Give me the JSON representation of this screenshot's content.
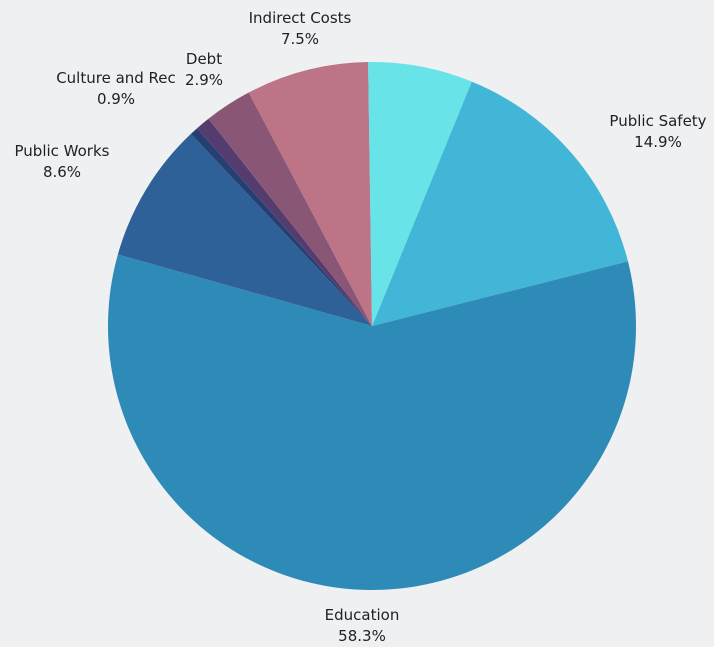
{
  "chart_data": {
    "type": "pie",
    "slices": [
      {
        "label": "Public Safety",
        "value": 14.9,
        "display": "14.9%",
        "color": "#42b6d6"
      },
      {
        "label": "Education",
        "value": 58.3,
        "display": "58.3%",
        "color": "#2e8bb8"
      },
      {
        "label": "Public Works",
        "value": 8.6,
        "display": "8.6%",
        "color": "#2f6199"
      },
      {
        "label": "",
        "value": 0.5,
        "display": "",
        "color": "#263f73"
      },
      {
        "label": "Culture and Rec",
        "value": 0.9,
        "display": "0.9%",
        "color": "#553c6e"
      },
      {
        "label": "Debt",
        "value": 2.9,
        "display": "2.9%",
        "color": "#8a5676"
      },
      {
        "label": "Indirect Costs",
        "value": 7.5,
        "display": "7.5%",
        "color": "#bc7486"
      },
      {
        "label": "",
        "value": 6.4,
        "display": "",
        "color": "#68e3e8"
      }
    ]
  }
}
